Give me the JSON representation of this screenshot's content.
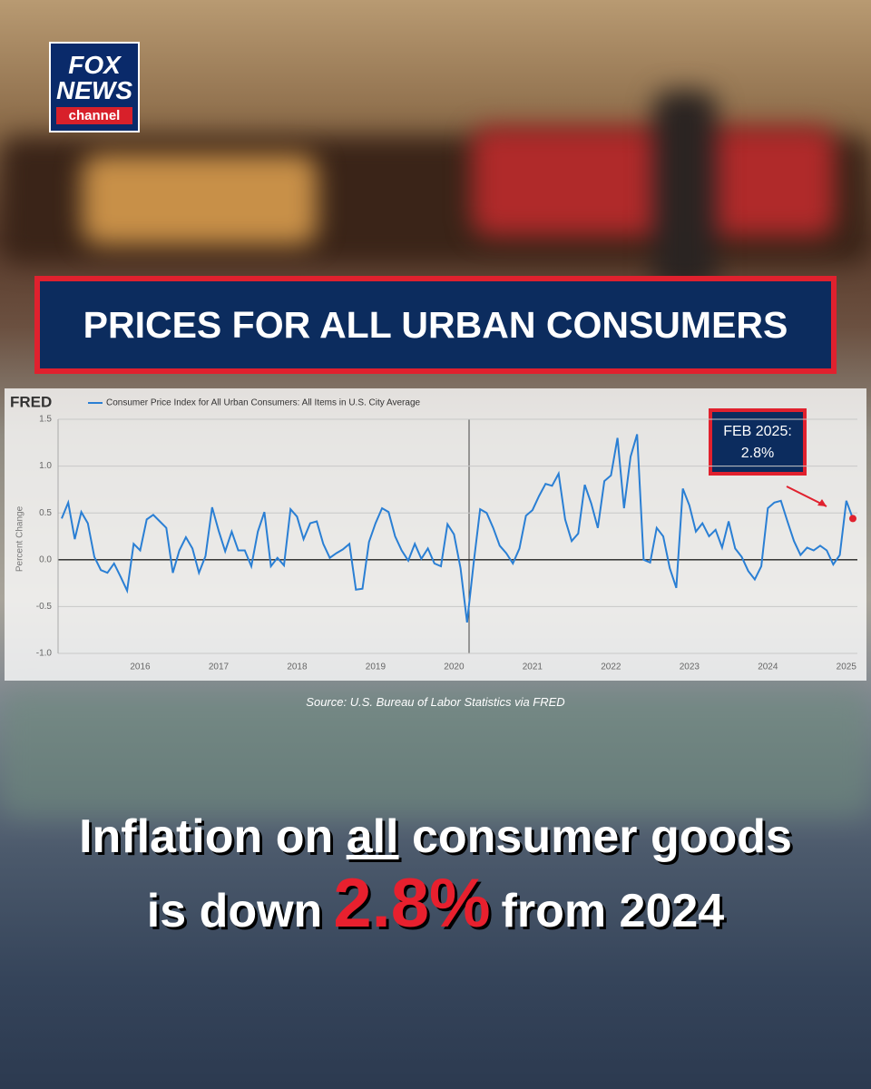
{
  "logo": [
    "FOX",
    "NEWS",
    "channel"
  ],
  "banner": "PRICES FOR ALL URBAN CONSUMERS",
  "chart_data": {
    "type": "line",
    "brand": "FRED",
    "y_label": "Percent Change",
    "annotation": [
      "FEB 2025:",
      "2.8%"
    ],
    "categories": [
      null,
      null,
      null,
      null,
      null,
      null,
      null,
      null,
      null,
      null,
      null,
      null,
      "2016",
      null,
      null,
      null,
      null,
      null,
      null,
      null,
      null,
      null,
      null,
      null,
      "2017",
      null,
      null,
      null,
      null,
      null,
      null,
      null,
      null,
      null,
      null,
      null,
      "2018",
      null,
      null,
      null,
      null,
      null,
      null,
      null,
      null,
      null,
      null,
      null,
      "2019",
      null,
      null,
      null,
      null,
      null,
      null,
      null,
      null,
      null,
      null,
      null,
      "2020",
      null,
      null,
      null,
      null,
      null,
      null,
      null,
      null,
      null,
      null,
      null,
      "2021",
      null,
      null,
      null,
      null,
      null,
      null,
      null,
      null,
      null,
      null,
      null,
      "2022",
      null,
      null,
      null,
      null,
      null,
      null,
      null,
      null,
      null,
      null,
      null,
      "2023",
      null,
      null,
      null,
      null,
      null,
      null,
      null,
      null,
      null,
      null,
      null,
      "2024",
      null,
      null,
      null,
      null,
      null,
      null,
      null,
      null,
      null,
      null,
      null,
      "2025",
      null
    ],
    "series": [
      {
        "name": "Consumer Price Index for All Urban Consumers: All Items in U.S. City Average",
        "color": "#2a7fd4",
        "values": [
          0.44,
          0.61,
          0.22,
          0.51,
          0.39,
          0.03,
          -0.11,
          -0.14,
          -0.04,
          -0.18,
          -0.33,
          0.17,
          0.1,
          0.43,
          0.48,
          0.41,
          0.34,
          -0.14,
          0.1,
          0.24,
          0.12,
          -0.14,
          0.04,
          0.56,
          0.31,
          0.09,
          0.3,
          0.1,
          0.1,
          -0.07,
          0.3,
          0.51,
          -0.07,
          0.02,
          -0.06,
          0.54,
          0.46,
          0.22,
          0.39,
          0.41,
          0.17,
          0.02,
          0.07,
          0.11,
          0.17,
          -0.32,
          -0.31,
          0.19,
          0.39,
          0.55,
          0.51,
          0.25,
          0.1,
          -0.01,
          0.17,
          0.01,
          0.12,
          -0.04,
          -0.07,
          0.38,
          0.27,
          -0.09,
          -0.67,
          -0.04,
          0.54,
          0.5,
          0.34,
          0.15,
          0.07,
          -0.04,
          0.12,
          0.47,
          0.53,
          0.68,
          0.81,
          0.79,
          0.92,
          0.43,
          0.2,
          0.28,
          0.8,
          0.6,
          0.34,
          0.84,
          0.9,
          1.3,
          0.55,
          1.1,
          1.34,
          0.0,
          -0.03,
          0.34,
          0.25,
          -0.09,
          -0.3,
          0.76,
          0.58,
          0.3,
          0.39,
          0.25,
          0.32,
          0.13,
          0.41,
          0.12,
          0.03,
          -0.12,
          -0.21,
          -0.07,
          0.55,
          0.61,
          0.63,
          0.41,
          0.2,
          0.05,
          0.13,
          0.1,
          0.15,
          0.1,
          -0.05,
          0.05,
          0.63,
          0.44
        ]
      }
    ],
    "highlight_color": "#e0212e",
    "ylim": [
      -1.0,
      1.5
    ],
    "yticks": [
      {
        "value": -1.0,
        "label": "-1.0"
      },
      -0.5,
      {
        "value": 0.0,
        "label": "0.0"
      },
      0.5,
      {
        "value": 1.0,
        "label": "1.0"
      },
      1.5
    ],
    "grid": true
  },
  "source": "Source: U.S. Bureau of Labor Statistics via FRED",
  "headline": [
    "Inflation on",
    "all",
    "consumer goods",
    "is down",
    "2.8%",
    "from 2024"
  ]
}
